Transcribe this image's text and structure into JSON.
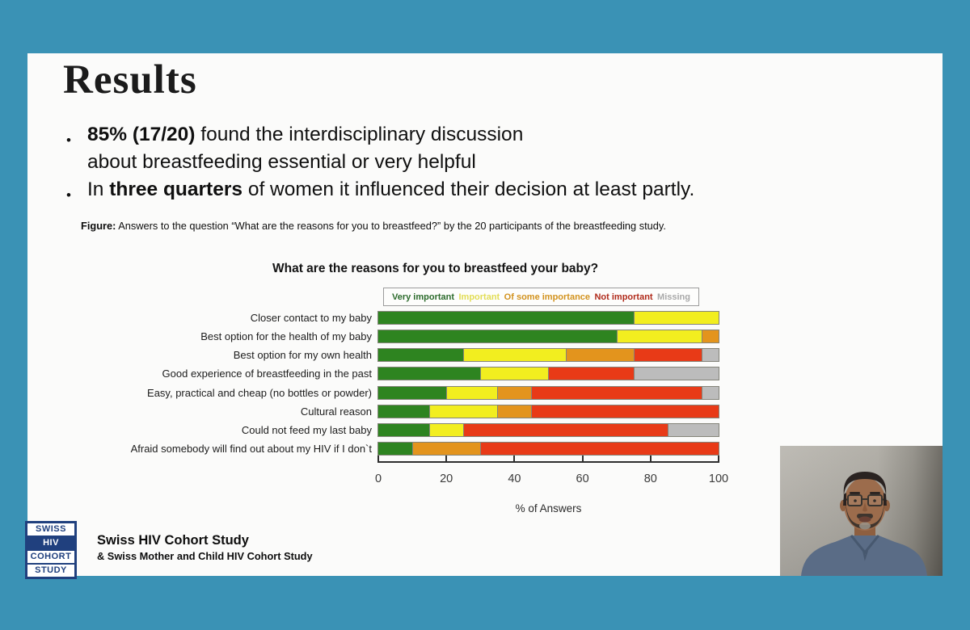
{
  "background_color": "#3a92b5",
  "slide": {
    "title": "Results",
    "bullets": {
      "b1_bold": "85% (17/20)",
      "b1_rest": " found the interdisciplinary discussion",
      "b1_line2": "about breastfeeding essential or very helpful",
      "b2_pre": "In ",
      "b2_bold": "three quarters",
      "b2_rest": " of women it influenced their decision at least partly."
    },
    "caption_label": "Figure:",
    "caption_text": " Answers to the question “What are the reasons for you to breastfeed?” by the 20 participants of the breastfeeding study.",
    "footer": {
      "logo_lines": [
        "SWISS",
        "HIV",
        "COHORT",
        "STUDY"
      ],
      "org": "Swiss HIV Cohort Study",
      "sub": "& Swiss Mother and Child HIV Cohort Study"
    }
  },
  "chart_data": {
    "type": "bar",
    "stacked": true,
    "orientation": "horizontal",
    "title": "What are the reasons for you to breastfeed your baby?",
    "xlabel": "% of Answers",
    "xlim": [
      0,
      100
    ],
    "xticks": [
      0,
      20,
      40,
      60,
      80,
      100
    ],
    "grid": false,
    "legend_position": "top",
    "legend": [
      {
        "key": "very-important",
        "label": "Very important",
        "text_color": "#2c6b2c"
      },
      {
        "key": "important",
        "label": "Important",
        "text_color": "#e2dd55"
      },
      {
        "key": "of-some-importance",
        "label": "Of some importance",
        "text_color": "#d2921d"
      },
      {
        "key": "not-important",
        "label": "Not important",
        "text_color": "#b02a1a"
      },
      {
        "key": "missing",
        "label": "Missing",
        "text_color": "#a9a9a9"
      }
    ],
    "categories": [
      "Closer contact to my baby",
      "Best option for the health of my baby",
      "Best option for my own health",
      "Good experience of breastfeeding in the past",
      "Easy, practical and cheap (no bottles or powder)",
      "Cultural reason",
      "Could not feed my last baby",
      "Afraid somebody will find out about my HIV if I don`t"
    ],
    "series": [
      {
        "key": "very-important",
        "name": "Very important",
        "color": "#2e8420",
        "values": [
          75,
          70,
          25,
          30,
          20,
          15,
          15,
          10
        ]
      },
      {
        "key": "important",
        "name": "Important",
        "color": "#f2ee1f",
        "values": [
          25,
          25,
          30,
          20,
          15,
          20,
          10,
          0
        ]
      },
      {
        "key": "of-some-importance",
        "name": "Of some importance",
        "color": "#e3941d",
        "values": [
          0,
          5,
          20,
          0,
          10,
          10,
          0,
          20
        ]
      },
      {
        "key": "not-important",
        "name": "Not important",
        "color": "#e83a17",
        "values": [
          0,
          0,
          20,
          25,
          50,
          55,
          60,
          70
        ]
      },
      {
        "key": "missing",
        "name": "Missing",
        "color": "#bcbcbc",
        "values": [
          0,
          0,
          5,
          25,
          5,
          0,
          15,
          0
        ]
      }
    ]
  }
}
